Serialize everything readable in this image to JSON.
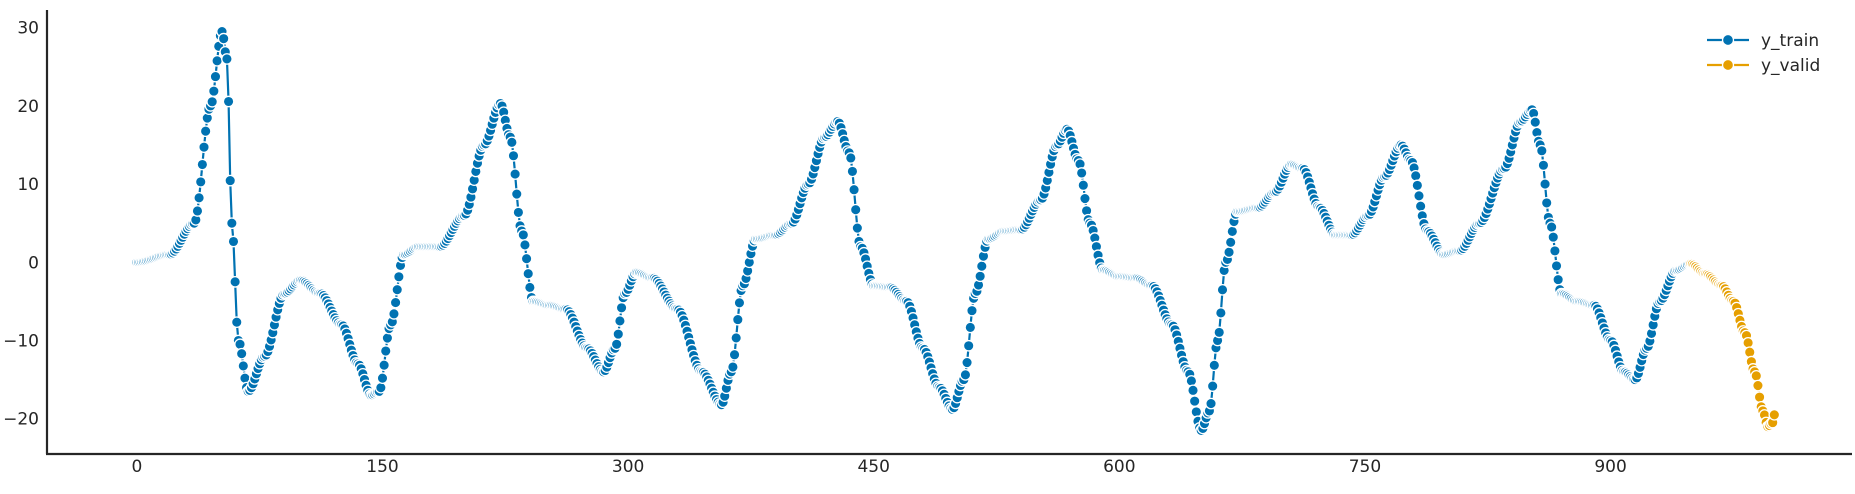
{
  "chart_data": {
    "type": "line",
    "title": "",
    "xlabel": "",
    "ylabel": "",
    "xlim": [
      -50,
      1045
    ],
    "ylim": [
      -24,
      32
    ],
    "xticks": [
      0,
      150,
      300,
      450,
      600,
      750,
      900
    ],
    "yticks": [
      -20,
      -10,
      0,
      10,
      20,
      30
    ],
    "grid": false,
    "legend_position": "top-right",
    "series": [
      {
        "name": "y_train",
        "color": "#0072b2",
        "marker": "circle",
        "x_range": [
          0,
          949
        ],
        "anchors": [
          [
            0,
            0
          ],
          [
            20,
            1
          ],
          [
            35,
            5
          ],
          [
            45,
            20
          ],
          [
            52,
            29.5
          ],
          [
            55,
            26
          ],
          [
            58,
            5
          ],
          [
            62,
            -10
          ],
          [
            68,
            -16.5
          ],
          [
            78,
            -12
          ],
          [
            90,
            -4
          ],
          [
            100,
            -2.3
          ],
          [
            112,
            -4
          ],
          [
            125,
            -8
          ],
          [
            135,
            -13
          ],
          [
            143,
            -17
          ],
          [
            148,
            -16.5
          ],
          [
            155,
            -8
          ],
          [
            163,
            1
          ],
          [
            172,
            2
          ],
          [
            185,
            2
          ],
          [
            200,
            6
          ],
          [
            212,
            15
          ],
          [
            222,
            20.3
          ],
          [
            228,
            16
          ],
          [
            235,
            4
          ],
          [
            242,
            -5
          ],
          [
            252,
            -5.5
          ],
          [
            262,
            -6
          ],
          [
            275,
            -11
          ],
          [
            285,
            -14
          ],
          [
            292,
            -11
          ],
          [
            298,
            -4
          ],
          [
            305,
            -1.3
          ],
          [
            315,
            -2
          ],
          [
            330,
            -6
          ],
          [
            345,
            -14
          ],
          [
            357,
            -18.2
          ],
          [
            363,
            -14
          ],
          [
            370,
            -3
          ],
          [
            378,
            3
          ],
          [
            390,
            3.5
          ],
          [
            400,
            5
          ],
          [
            410,
            10
          ],
          [
            420,
            16
          ],
          [
            428,
            18
          ],
          [
            435,
            14
          ],
          [
            442,
            2
          ],
          [
            450,
            -3
          ],
          [
            460,
            -3.2
          ],
          [
            470,
            -5
          ],
          [
            480,
            -11
          ],
          [
            490,
            -16
          ],
          [
            498,
            -18.8
          ],
          [
            505,
            -15
          ],
          [
            512,
            -4
          ],
          [
            520,
            3
          ],
          [
            530,
            4
          ],
          [
            540,
            4.2
          ],
          [
            552,
            8
          ],
          [
            562,
            15
          ],
          [
            568,
            17
          ],
          [
            575,
            13
          ],
          [
            582,
            5
          ],
          [
            590,
            -1
          ],
          [
            600,
            -1.8
          ],
          [
            610,
            -2
          ],
          [
            620,
            -3
          ],
          [
            632,
            -8
          ],
          [
            642,
            -14
          ],
          [
            650,
            -21.5
          ],
          [
            655,
            -19
          ],
          [
            660,
            -10
          ],
          [
            665,
            0
          ],
          [
            672,
            6.5
          ],
          [
            685,
            7
          ],
          [
            695,
            9
          ],
          [
            705,
            12.5
          ],
          [
            712,
            12
          ],
          [
            722,
            7
          ],
          [
            732,
            3.5
          ],
          [
            742,
            3.5
          ],
          [
            752,
            6
          ],
          [
            762,
            11
          ],
          [
            772,
            15
          ],
          [
            778,
            13
          ],
          [
            788,
            4
          ],
          [
            798,
            1
          ],
          [
            808,
            1.5
          ],
          [
            820,
            5
          ],
          [
            835,
            12
          ],
          [
            845,
            18
          ],
          [
            852,
            19.5
          ],
          [
            857,
            15
          ],
          [
            863,
            5
          ],
          [
            870,
            -4
          ],
          [
            880,
            -5
          ],
          [
            890,
            -5.5
          ],
          [
            900,
            -10
          ],
          [
            908,
            -14
          ],
          [
            915,
            -15
          ],
          [
            922,
            -11
          ],
          [
            930,
            -5
          ],
          [
            940,
            -1
          ],
          [
            949,
            -0.2
          ]
        ]
      },
      {
        "name": "y_valid",
        "color": "#e69f00",
        "marker": "circle",
        "x_range": [
          949,
          1000
        ],
        "anchors": [
          [
            949,
            -0.2
          ],
          [
            958,
            -1.5
          ],
          [
            968,
            -3
          ],
          [
            975,
            -5
          ],
          [
            982,
            -9
          ],
          [
            988,
            -14
          ],
          [
            993,
            -19
          ],
          [
            996,
            -21
          ],
          [
            999,
            -20.5
          ],
          [
            1000,
            -19.5
          ]
        ]
      }
    ]
  }
}
